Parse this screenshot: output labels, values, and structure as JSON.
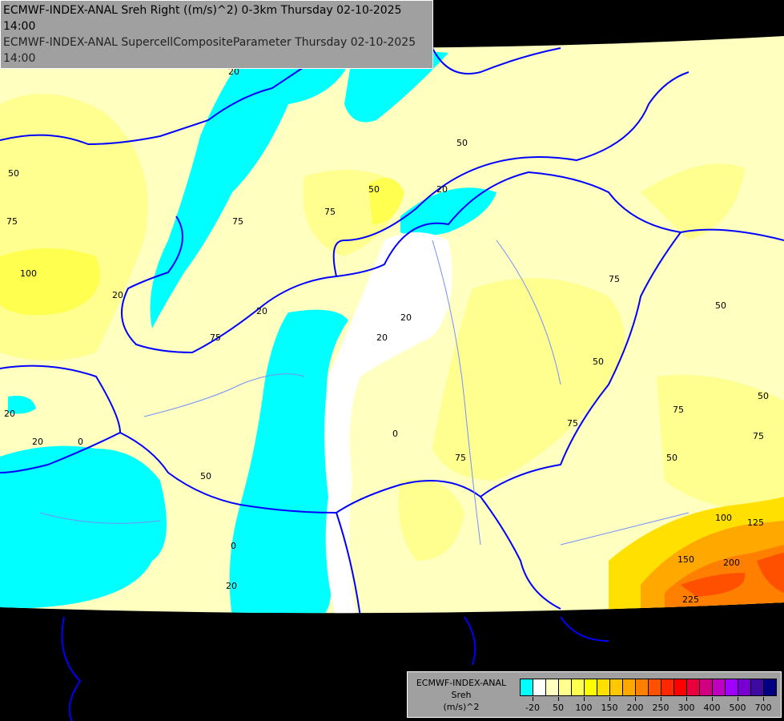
{
  "header": {
    "line1": "ECMWF-INDEX-ANAL Sreh Right ((m/s)^2) 0-3km Thursday 02-10-2025 14:00",
    "line2": "ECMWF-INDEX-ANAL SupercellCompositeParameter Thursday 02-10-2025 14:00"
  },
  "legend": {
    "model": "ECMWF-INDEX-ANAL",
    "variable": "Sreh",
    "unit": "(m/s)^2",
    "colors": [
      "#00ffff",
      "#ffffff",
      "#ffffc0",
      "#ffff90",
      "#ffff50",
      "#ffff00",
      "#ffe000",
      "#ffc800",
      "#ffa800",
      "#ff8000",
      "#ff5000",
      "#ff2800",
      "#ff0000",
      "#e8003c",
      "#d00080",
      "#c000c0",
      "#a000ff",
      "#7800d0",
      "#3c0aa0",
      "#000080"
    ],
    "tick_labels": [
      "-20",
      "50",
      "100",
      "150",
      "200",
      "250",
      "300",
      "400",
      "500",
      "700"
    ]
  },
  "colors": {
    "background": "#000000",
    "borders": "#0000ff",
    "rivers": "#a0b4ff",
    "panel": "#a0a0a0"
  },
  "contour_labels": [
    "50",
    "50",
    "20",
    "20",
    "50",
    "75",
    "100",
    "20",
    "75",
    "50",
    "75",
    "20",
    "20",
    "50",
    "75",
    "20",
    "0",
    "20",
    "50",
    "0",
    "20",
    "75",
    "50",
    "75",
    "50",
    "75",
    "50",
    "75",
    "75",
    "50",
    "100",
    "125",
    "150",
    "200",
    "225",
    "20",
    "0",
    "20"
  ]
}
